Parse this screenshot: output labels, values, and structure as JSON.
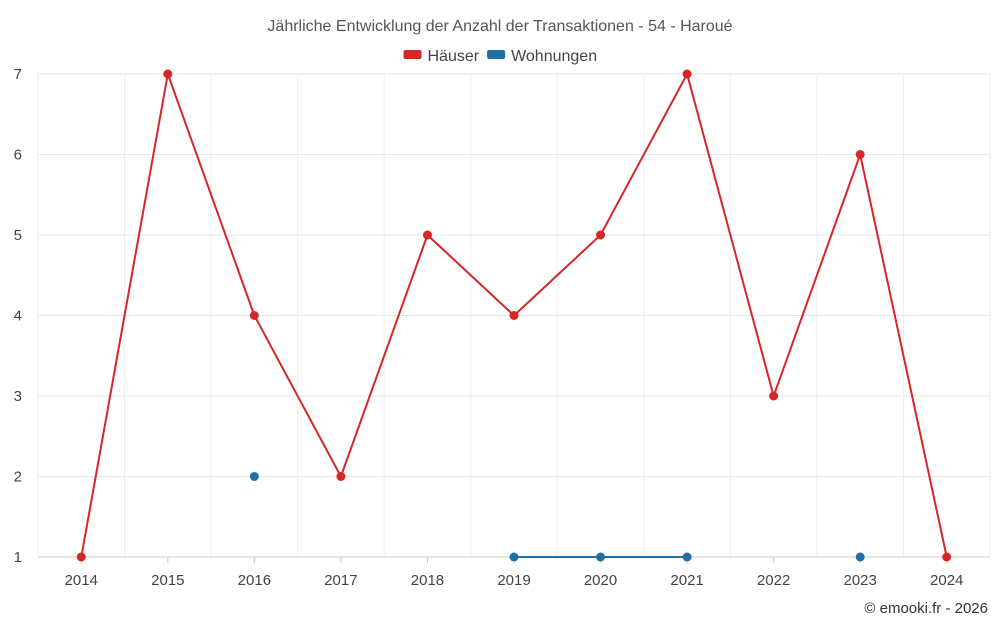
{
  "chart_data": {
    "type": "line",
    "title": "Jährliche Entwicklung der Anzahl der Transaktionen - 54 - Haroué",
    "xlabel": "",
    "ylabel": "",
    "categories": [
      "2014",
      "2015",
      "2016",
      "2017",
      "2018",
      "2019",
      "2020",
      "2021",
      "2022",
      "2023",
      "2024"
    ],
    "ylim": [
      1,
      7
    ],
    "yticks": [
      1,
      2,
      3,
      4,
      5,
      6,
      7
    ],
    "grid": true,
    "legend_position": "top-center",
    "series": [
      {
        "name": "Häuser",
        "color": "#d62728",
        "values": [
          1,
          7,
          4,
          2,
          5,
          4,
          5,
          7,
          3,
          6,
          1
        ]
      },
      {
        "name": "Wohnungen",
        "color": "#1f6fa5",
        "values": [
          null,
          null,
          2,
          null,
          null,
          1,
          1,
          1,
          null,
          1,
          null
        ]
      }
    ]
  },
  "credit": "© emooki.fr - 2026"
}
